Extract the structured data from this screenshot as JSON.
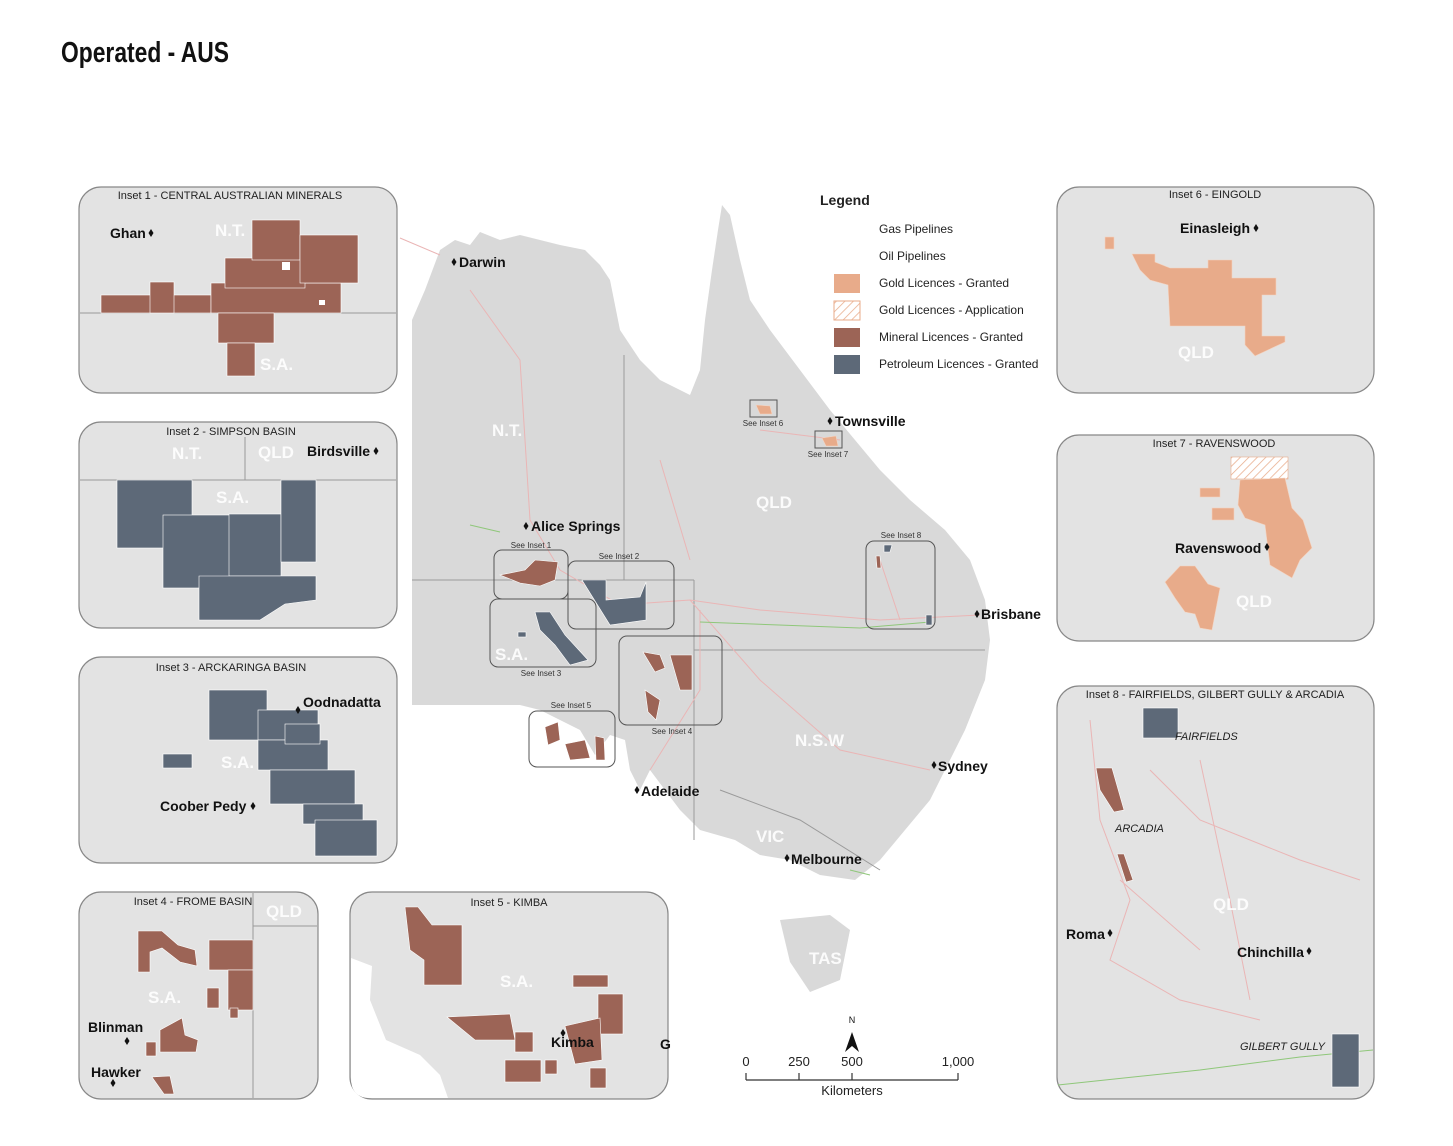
{
  "title": "Operated - AUS",
  "legend": {
    "title": "Legend",
    "items": [
      {
        "label": "Gas Pipelines",
        "color": "#e8a9a9"
      },
      {
        "label": "Oil Pipelines",
        "color": "#8fc77a"
      },
      {
        "label": "Gold Licences - Granted",
        "color": "#e8ab8a"
      },
      {
        "label": "Gold Licences - Application",
        "color": "#e8ab8a"
      },
      {
        "label": "Mineral Licences - Granted",
        "color": "#9c6456"
      },
      {
        "label": "Petroleum Licences - Granted",
        "color": "#5d6978"
      }
    ]
  },
  "main_map": {
    "places": [
      "Darwin",
      "Alice Springs",
      "Townsville",
      "Brisbane",
      "Sydney",
      "Adelaide",
      "Melbourne"
    ],
    "regions": [
      "N.T.",
      "QLD",
      "S.A.",
      "N.S.W",
      "VIC",
      "TAS"
    ],
    "inset_refs": [
      "See Inset 1",
      "See Inset 2",
      "See Inset 3",
      "See Inset 4",
      "See Inset 5",
      "See Inset 6",
      "See Inset 7",
      "See Inset 8"
    ]
  },
  "insets": [
    {
      "title": "Inset 1 - CENTRAL AUSTRALIAN MINERALS",
      "places": [
        "Ghan"
      ],
      "regions": [
        "N.T.",
        "S.A."
      ]
    },
    {
      "title": "Inset 2 - SIMPSON BASIN",
      "places": [
        "Birdsville"
      ],
      "regions": [
        "N.T.",
        "QLD",
        "S.A."
      ]
    },
    {
      "title": "Inset 3 - ARCKARINGA BASIN",
      "places": [
        "Oodnadatta",
        "Coober Pedy"
      ],
      "regions": [
        "S.A."
      ]
    },
    {
      "title": "Inset 4 - FROME BASIN",
      "places": [
        "Blinman",
        "Hawker"
      ],
      "regions": [
        "QLD",
        "S.A."
      ]
    },
    {
      "title": "Inset 5 - KIMBA",
      "places": [
        "Kimba",
        "G"
      ],
      "regions": [
        "S.A."
      ]
    },
    {
      "title": "Inset 6 - EINGOLD",
      "places": [
        "Einasleigh"
      ],
      "regions": [
        "QLD"
      ]
    },
    {
      "title": "Inset 7 - RAVENSWOOD",
      "places": [
        "Ravenswood"
      ],
      "regions": [
        "QLD"
      ]
    },
    {
      "title": "Inset 8 - FAIRFIELDS, GILBERT GULLY & ARCADIA",
      "places": [
        "Roma",
        "Chinchilla"
      ],
      "regions": [
        "QLD"
      ],
      "features": [
        "FAIRFIELDS",
        "ARCADIA",
        "GILBERT GULLY"
      ]
    }
  ],
  "scale_bar": {
    "north": "N",
    "range": [
      0,
      1000
    ],
    "ticks": [
      0,
      250,
      500,
      {
        "value": 1000,
        "label": "1,000"
      }
    ],
    "unit": "Kilometers"
  }
}
